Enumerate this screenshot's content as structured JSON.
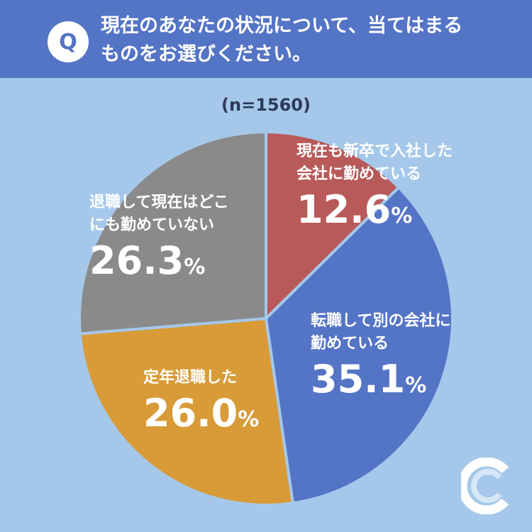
{
  "header": {
    "badge": "Q",
    "question_line1": "現在のあなたの状況について、当てはまる",
    "question_line2": "ものをお選びください。"
  },
  "sample_size": "(n=1560)",
  "colors": {
    "header_bg": "#5474c6",
    "background": "#a5c8ea",
    "slice_new_grad": "#b85a5a",
    "slice_changed_job": "#5474c6",
    "slice_retired_age": "#d89b37",
    "slice_retired_unemployed": "#8a8a8a"
  },
  "chart_data": {
    "type": "pie",
    "title": "現在のあなたの状況について、当てはまるものをお選びください。",
    "n": 1560,
    "slices": [
      {
        "line1": "現在も新卒で入社した",
        "line2": "会社に勤めている",
        "value": 12.6,
        "pct": "12.6",
        "unit": "%"
      },
      {
        "line1": "転職して別の会社に",
        "line2": "勤めている",
        "value": 35.1,
        "pct": "35.1",
        "unit": "%"
      },
      {
        "line1": "定年退職した",
        "line2": "",
        "value": 26.0,
        "pct": "26.0",
        "unit": "%"
      },
      {
        "line1": "退職して現在はどこ",
        "line2": "にも勤めていない",
        "value": 26.3,
        "pct": "26.3",
        "unit": "%"
      }
    ]
  }
}
